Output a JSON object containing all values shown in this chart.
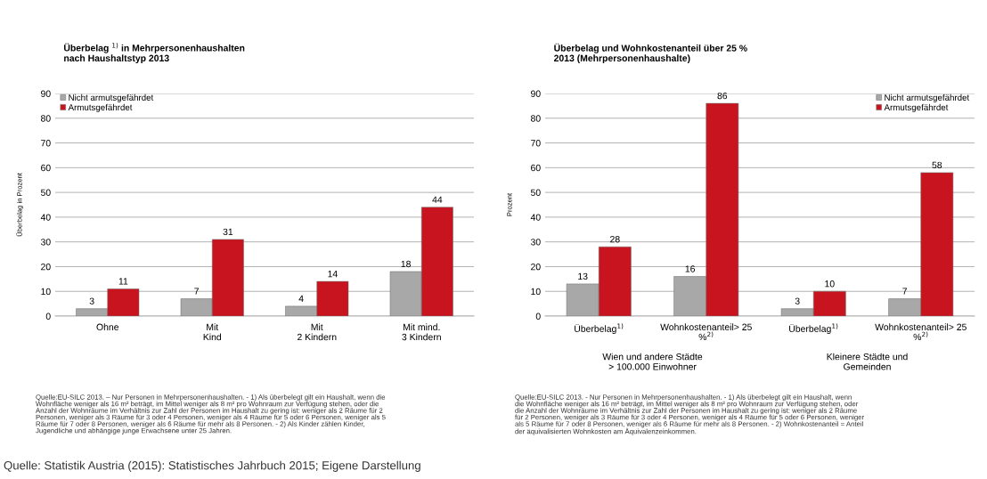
{
  "chart_data": [
    {
      "type": "bar",
      "title": "Überbelag $^{1)}$ in Mehrpersonenhaushalten\nnach Haushaltstyp 2013",
      "ylabel": "Überbelag in Prozent",
      "categories": [
        "Ohne",
        "Mit\nKind",
        "Mit\n2 Kindern",
        "Mit mind.\n3 Kindern"
      ],
      "series": [
        {
          "name": "Nicht armutsgefährdet",
          "color": "#a8a8a8",
          "values": [
            3,
            7,
            4,
            18
          ]
        },
        {
          "name": "Armutsgefährdet",
          "color": "#c8141e",
          "values": [
            11,
            31,
            14,
            44
          ]
        }
      ],
      "ylim": [
        0,
        90
      ],
      "yticks": [
        0,
        10,
        20,
        30,
        40,
        50,
        60,
        70,
        80,
        90
      ],
      "grid": "y",
      "legend": "top left",
      "data_labels": true,
      "annotations": [
        "Quelle:EU-SILC 2013. – Nur Personen in Mehrpersonenhaushalten. - 1) Als überbelegt gilt ein Haushalt, wenn die\nWohnfläche weniger als 16 m² beträgt, im Mittel weniger als 8 m² pro Wohnraum zur Verfügung stehen, oder die\nAnzahl der Wohnräume im Verhältnis zur Zahl der Personen im Haushalt zu gering ist: weniger als 2 Räume für 2\nPersonen, weniger als 3 Räume für 3 oder 4 Personen, weniger als 4 Räume für 5 oder 6 Personen, weniger als 5\nRäume für 7 oder 8 Personen, weniger als 6 Räume für mehr als 8 Personen. - 2) Als Kinder zählen Kinder,\nJugendliche und abhängige junge Erwachsene unter 25 Jahren.",
        "Quelle: Statistik Austria (2015): Statistisches Jahrbuch 2015; Eigene Darstellung"
      ]
    },
    {
      "type": "bar",
      "title": "Überbelag und Wohnkostenanteil über 25 %\n2013 (Mehrpersonenhaushalte)",
      "ylabel": "Prozent",
      "categories": [
        "Überbelag$^{1)}$",
        "Wohnkostenanteil> 25\n%$^{2)}$",
        "Überbelag$^{1)}$",
        "Wohnkostenanteil> 25\n%$^{2)}$"
      ],
      "series": [
        {
          "name": "Nicht armutsgefährdet",
          "color": "#a8a8a8",
          "values": [
            13,
            16,
            3,
            7
          ]
        },
        {
          "name": "Armutsgefährdet",
          "color": "#c8141e",
          "values": [
            28,
            86,
            10,
            58
          ]
        }
      ],
      "ylim": [
        0,
        90
      ],
      "yticks": [
        0,
        10,
        20,
        30,
        40,
        50,
        60,
        70,
        80,
        90
      ],
      "grid": "y",
      "legend": "top right",
      "data_labels": true,
      "annotations": [
        "Wien und andere Städte\n> 100.000 Einwohner",
        "Kleinere Städte und\nGemeinden",
        "Quelle:EU-SILC 2013. - Nur Personen in Mehrpersonenhaushalten. - 1) Als überbelegt gilt ein Haushalt, wenn\ndie Wohnfläche weniger als 16 m² beträgt, im Mittel weniger als 8 m² pro Wohnraum zur Verfügung stehen, oder\ndie Anzahl der Wohnräume im Verhältnis zur Zahl der Personen im Haushalt zu gering ist: weniger als 2 Räume\nfür 2 Personen, weniger als 3 Räume für 3 oder 4 Personen, weniger als 4 Räume für 5 oder 6 Personen, weniger\nals 5 Räume für 7 oder 8 Personen, weniger als 6 Räume für mehr als 8 Personen. - 2) Wohnkostenanteil = Anteil\nder äquivalisierten Wohnkosten am Äquivalenzeinkommen."
      ]
    }
  ]
}
